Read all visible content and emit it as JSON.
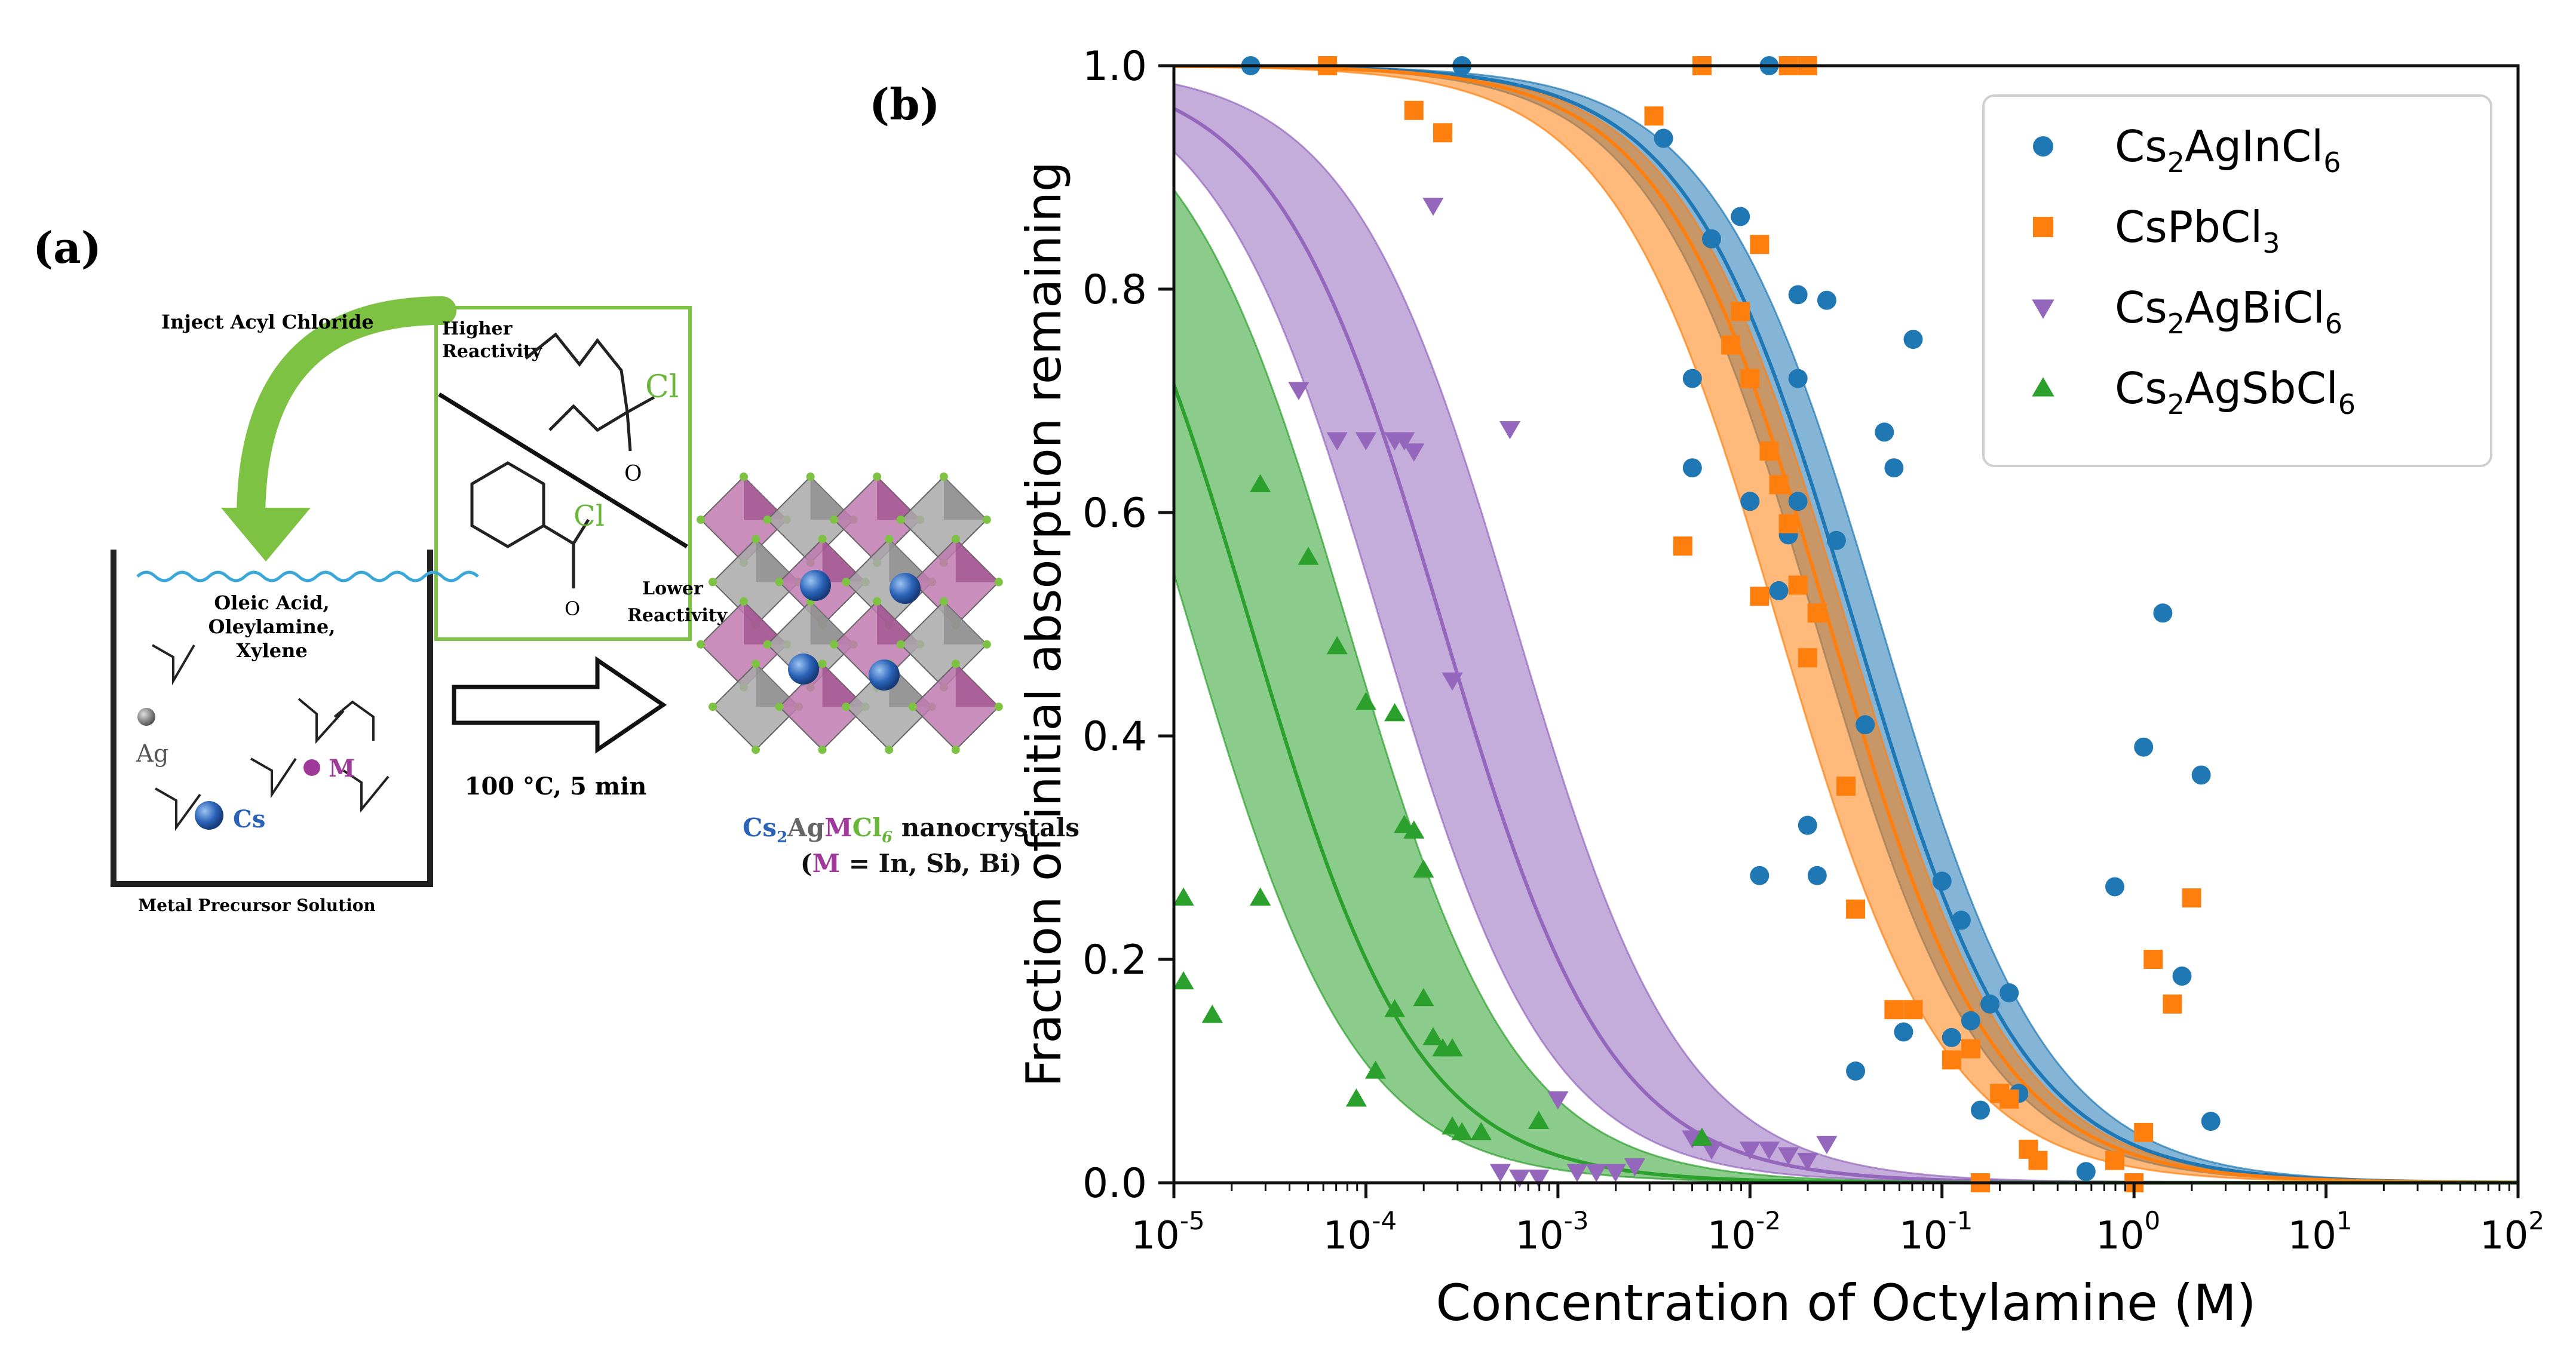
{
  "panel_a": {
    "label": "(a)",
    "inject_label": "Inject Acyl Chloride",
    "higher_reactivity_1": "Higher",
    "higher_reactivity_2": "Reactivity",
    "lower_reactivity_1": "Lower",
    "lower_reactivity_2": "Reactivity",
    "chlorine": "Cl",
    "solution_1": "Oleic Acid,",
    "solution_2": "Oleylamine,",
    "solution_3": "Xylene",
    "ag_label": "Ag",
    "cs_label": "Cs",
    "m_label": "M",
    "precursor_label": "Metal Precursor Solution",
    "conditions": "100 °C, 5 min",
    "product_cs": "Cs",
    "product_sub2": "2",
    "product_ag": "Ag",
    "product_m": "M",
    "product_cl": "Cl",
    "product_sub6": "6",
    "product_rest": " nanocrystals",
    "product_paren_open": "(",
    "product_paren_m": "M",
    "product_paren_rest": " = In, Sb, Bi)",
    "colors": {
      "arrow_green": "#7dc243",
      "box_green": "#7dc243",
      "cl_green": "#6ab63b",
      "cs_blue": "#2b63b8",
      "m_purple": "#a03a9a",
      "octahedra_gray": "#a9a9a9",
      "octahedra_pink": "#c07ab0"
    }
  },
  "chart_data": {
    "type": "scatter",
    "panel_label": "(b)",
    "xlabel": "Concentration of Octylamine (M)",
    "ylabel": "Fraction of initial absorption remaining",
    "x_scale": "log",
    "xlim_exp": [
      -5,
      2
    ],
    "ylim": [
      0,
      1
    ],
    "x_ticks": [
      {
        "base": "10",
        "exp": "-5",
        "value": -5
      },
      {
        "base": "10",
        "exp": "-4",
        "value": -4
      },
      {
        "base": "10",
        "exp": "-3",
        "value": -3
      },
      {
        "base": "10",
        "exp": "-2",
        "value": -2
      },
      {
        "base": "10",
        "exp": "-1",
        "value": -1
      },
      {
        "base": "10",
        "exp": "0",
        "value": 0
      },
      {
        "base": "10",
        "exp": "1",
        "value": 1
      },
      {
        "base": "10",
        "exp": "2",
        "value": 2
      }
    ],
    "y_ticks": [
      {
        "label": "0.0",
        "value": 0.0
      },
      {
        "label": "0.2",
        "value": 0.2
      },
      {
        "label": "0.4",
        "value": 0.4
      },
      {
        "label": "0.6",
        "value": 0.6
      },
      {
        "label": "0.8",
        "value": 0.8
      },
      {
        "label": "1.0",
        "value": 1.0
      }
    ],
    "legend_position": "top-right",
    "series": [
      {
        "name": "Cs2AgInCl6",
        "legend_main": "Cs",
        "legend_sub1": "2",
        "legend_mid": "AgInCl",
        "legend_sub2": "6",
        "marker": "circle",
        "color": "#1f77b4",
        "fill": "#1f77b4",
        "fit": {
          "x50": 0.035,
          "x50_low": 0.022,
          "x50_high": 0.048,
          "slope": 1.0
        },
        "points": [
          [
            -4.6,
            1.0
          ],
          [
            -3.5,
            1.0
          ],
          [
            -1.9,
            1.0
          ],
          [
            -2.45,
            0.935
          ],
          [
            -2.05,
            0.865
          ],
          [
            -2.2,
            0.845
          ],
          [
            -1.75,
            0.795
          ],
          [
            -1.6,
            0.79
          ],
          [
            -1.15,
            0.755
          ],
          [
            -1.75,
            0.72
          ],
          [
            -2.3,
            0.72
          ],
          [
            -1.3,
            0.672
          ],
          [
            -1.25,
            0.64
          ],
          [
            -2.3,
            0.64
          ],
          [
            -2.0,
            0.61
          ],
          [
            -1.75,
            0.61
          ],
          [
            -1.8,
            0.58
          ],
          [
            -1.55,
            0.575
          ],
          [
            -1.85,
            0.53
          ],
          [
            -1.4,
            0.41
          ],
          [
            -1.7,
            0.32
          ],
          [
            -1.95,
            0.275
          ],
          [
            -1.65,
            0.275
          ],
          [
            -1.0,
            0.27
          ],
          [
            -0.9,
            0.235
          ],
          [
            -0.75,
            0.16
          ],
          [
            -0.65,
            0.17
          ],
          [
            -0.6,
            0.08
          ],
          [
            -0.95,
            0.13
          ],
          [
            -1.2,
            0.135
          ],
          [
            -0.85,
            0.145
          ],
          [
            -1.45,
            0.1
          ],
          [
            -0.8,
            0.065
          ],
          [
            0.15,
            0.51
          ],
          [
            0.05,
            0.39
          ],
          [
            0.35,
            0.365
          ],
          [
            -0.1,
            0.265
          ],
          [
            0.25,
            0.185
          ],
          [
            -0.25,
            0.01
          ],
          [
            0.4,
            0.055
          ]
        ]
      },
      {
        "name": "CsPbCl3",
        "legend_main": "CsPbCl",
        "legend_sub1": "3",
        "legend_mid": "",
        "legend_sub2": "",
        "marker": "square",
        "color": "#ff7f0e",
        "fill": "#ff7f0e",
        "fit": {
          "x50": 0.026,
          "x50_low": 0.014,
          "x50_high": 0.032,
          "slope": 1.0
        },
        "points": [
          [
            -4.2,
            1.0
          ],
          [
            -2.25,
            1.0
          ],
          [
            -1.8,
            1.0
          ],
          [
            -1.7,
            1.0
          ],
          [
            -3.75,
            0.96
          ],
          [
            -2.5,
            0.955
          ],
          [
            -3.6,
            0.94
          ],
          [
            -1.95,
            0.84
          ],
          [
            -2.05,
            0.78
          ],
          [
            -2.1,
            0.75
          ],
          [
            -2.0,
            0.72
          ],
          [
            -1.9,
            0.655
          ],
          [
            -1.85,
            0.625
          ],
          [
            -1.8,
            0.59
          ],
          [
            -2.35,
            0.57
          ],
          [
            -1.75,
            0.535
          ],
          [
            -1.95,
            0.525
          ],
          [
            -1.65,
            0.51
          ],
          [
            -1.7,
            0.47
          ],
          [
            -1.5,
            0.355
          ],
          [
            -1.45,
            0.245
          ],
          [
            -1.15,
            0.155
          ],
          [
            -1.25,
            0.155
          ],
          [
            -0.95,
            0.11
          ],
          [
            -0.85,
            0.12
          ],
          [
            -0.7,
            0.08
          ],
          [
            -0.65,
            0.075
          ],
          [
            -0.55,
            0.03
          ],
          [
            -0.5,
            0.02
          ],
          [
            0.3,
            0.255
          ],
          [
            0.1,
            0.2
          ],
          [
            0.2,
            0.16
          ],
          [
            0.05,
            0.045
          ],
          [
            -0.1,
            0.02
          ],
          [
            -0.8,
            0.0
          ],
          [
            0.0,
            0.0
          ]
        ]
      },
      {
        "name": "Cs2AgBiCl6",
        "legend_main": "Cs",
        "legend_sub1": "2",
        "legend_mid": "AgBiCl",
        "legend_sub2": "6",
        "marker": "triangle-down",
        "color": "#9467bd",
        "fill": "#9467bd",
        "fit": {
          "x50": 0.00025,
          "x50_low": 0.00012,
          "x50_high": 0.0006,
          "slope": 1.0
        },
        "points": [
          [
            -4.35,
            0.71
          ],
          [
            -4.15,
            0.665
          ],
          [
            -4.0,
            0.665
          ],
          [
            -3.85,
            0.665
          ],
          [
            -3.8,
            0.665
          ],
          [
            -3.75,
            0.655
          ],
          [
            -3.65,
            0.875
          ],
          [
            -3.25,
            0.675
          ],
          [
            -3.55,
            0.45
          ],
          [
            -3.0,
            0.075
          ],
          [
            -3.3,
            0.01
          ],
          [
            -3.2,
            0.005
          ],
          [
            -3.1,
            0.005
          ],
          [
            -2.9,
            0.01
          ],
          [
            -2.8,
            0.01
          ],
          [
            -2.7,
            0.01
          ],
          [
            -2.6,
            0.015
          ],
          [
            -2.3,
            0.04
          ],
          [
            -2.0,
            0.03
          ],
          [
            -1.9,
            0.03
          ],
          [
            -1.8,
            0.025
          ],
          [
            -1.7,
            0.02
          ],
          [
            -1.6,
            0.035
          ],
          [
            -2.2,
            0.03
          ]
        ]
      },
      {
        "name": "Cs2AgSbCl6",
        "legend_main": "Cs",
        "legend_sub1": "2",
        "legend_mid": "AgSbCl",
        "legend_sub2": "6",
        "marker": "triangle-up",
        "color": "#2ca02c",
        "fill": "#2ca02c",
        "fit": {
          "x50": 2.5e-05,
          "x50_low": 1.2e-05,
          "x50_high": 8e-05,
          "slope": 1.0
        },
        "points": [
          [
            -4.55,
            0.625
          ],
          [
            -4.3,
            0.56
          ],
          [
            -4.15,
            0.48
          ],
          [
            -4.0,
            0.43
          ],
          [
            -3.85,
            0.42
          ],
          [
            -3.8,
            0.32
          ],
          [
            -3.75,
            0.315
          ],
          [
            -3.7,
            0.28
          ],
          [
            -4.95,
            0.255
          ],
          [
            -4.55,
            0.255
          ],
          [
            -4.95,
            0.18
          ],
          [
            -4.8,
            0.15
          ],
          [
            -3.85,
            0.155
          ],
          [
            -3.7,
            0.165
          ],
          [
            -3.6,
            0.12
          ],
          [
            -3.55,
            0.12
          ],
          [
            -3.65,
            0.13
          ],
          [
            -3.95,
            0.1
          ],
          [
            -3.55,
            0.05
          ],
          [
            -3.5,
            0.045
          ],
          [
            -4.05,
            0.075
          ],
          [
            -3.4,
            0.045
          ],
          [
            -3.1,
            0.055
          ],
          [
            -2.25,
            0.04
          ]
        ]
      }
    ]
  }
}
